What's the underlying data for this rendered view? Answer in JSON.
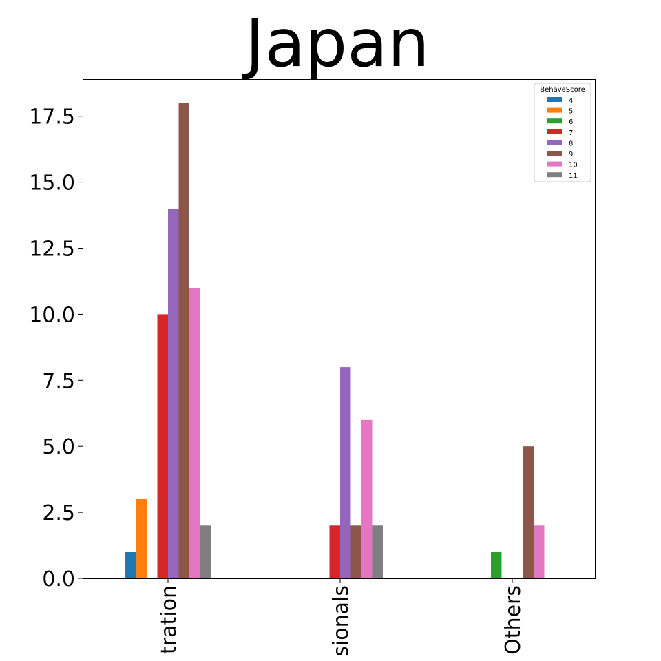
{
  "chart_data": {
    "type": "bar",
    "title": "Japan",
    "xlabel": "",
    "ylabel": "",
    "categories": [
      "Administration",
      "Professionals",
      "Others"
    ],
    "category_labels_visible": [
      "tration",
      "sionals",
      "Others"
    ],
    "ylim": [
      0,
      18.9
    ],
    "yticks": [
      0.0,
      2.5,
      5.0,
      7.5,
      10.0,
      12.5,
      15.0,
      17.5
    ],
    "ytick_labels": [
      "0.0",
      "2.5",
      "5.0",
      "7.5",
      "10.0",
      "12.5",
      "15.0",
      "17.5"
    ],
    "grid": false,
    "legend": {
      "title": "BehaveScore",
      "placement": "top-right"
    },
    "series": [
      {
        "name": "4",
        "color": "#1f77b4",
        "values": [
          1,
          0,
          0
        ]
      },
      {
        "name": "5",
        "color": "#ff7f0e",
        "values": [
          3,
          0,
          0
        ]
      },
      {
        "name": "6",
        "color": "#2ca02c",
        "values": [
          0,
          0,
          1
        ]
      },
      {
        "name": "7",
        "color": "#d62728",
        "values": [
          10,
          2,
          0
        ]
      },
      {
        "name": "8",
        "color": "#9467bd",
        "values": [
          14,
          8,
          0
        ]
      },
      {
        "name": "9",
        "color": "#8c564b",
        "values": [
          18,
          2,
          5
        ]
      },
      {
        "name": "10",
        "color": "#e377c2",
        "values": [
          11,
          6,
          2
        ]
      },
      {
        "name": "11",
        "color": "#7f7f7f",
        "values": [
          2,
          2,
          0
        ]
      }
    ]
  }
}
